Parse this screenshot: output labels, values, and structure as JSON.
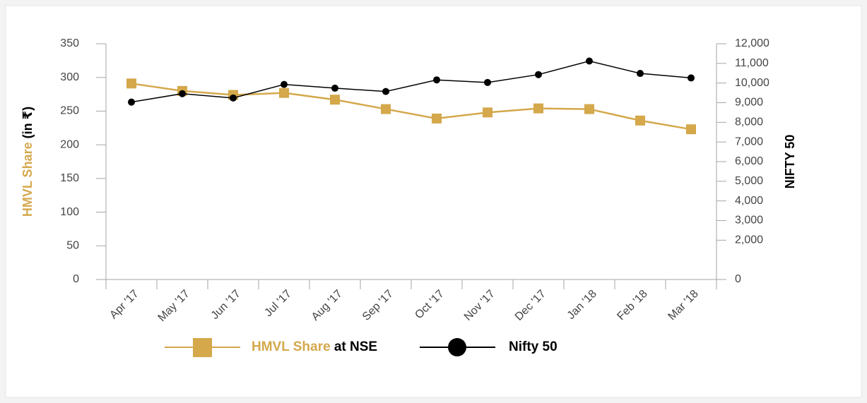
{
  "chart_data": {
    "type": "line",
    "categories": [
      "Apr '17",
      "May '17",
      "Jun '17",
      "Jul '17",
      "Aug '17",
      "Sep '17",
      "Oct '17",
      "Nov '17",
      "Dec '17",
      "Jan '18",
      "Feb '18",
      "Mar '18"
    ],
    "y_label": "HMVL Share (in ₹)",
    "y2_label": "NIFTY 50",
    "series": [
      {
        "name": "HMVL Share at NSE",
        "color": "#d4a84b",
        "marker": "square",
        "values": [
          291,
          280,
          274,
          277,
          267,
          253,
          239,
          248,
          254,
          253,
          236,
          223
        ]
      },
      {
        "name": "Nifty 50",
        "color": "#000000",
        "marker": "circle",
        "axis": "y2",
        "values": [
          9030,
          9460,
          9240,
          9930,
          9740,
          9570,
          10160,
          10030,
          10430,
          11120,
          10490,
          10260
        ]
      }
    ],
    "ylim": [
      0,
      350
    ],
    "yticks": [
      0,
      50,
      100,
      150,
      200,
      250,
      300,
      350
    ],
    "y2lim": [
      0,
      12000
    ],
    "y2ticks": [
      {
        "value": 0,
        "label": "0"
      },
      {
        "value": 2000,
        "label": "2,000"
      },
      {
        "value": 3000,
        "label": "3,000"
      },
      {
        "value": 4000,
        "label": "4,000"
      },
      {
        "value": 5000,
        "label": "5,000"
      },
      {
        "value": 6000,
        "label": "6,000"
      },
      {
        "value": 7000,
        "label": "7,000"
      },
      {
        "value": 8000,
        "label": "8,000"
      },
      {
        "value": 9000,
        "label": "9,000"
      },
      {
        "value": 10000,
        "label": "10,000"
      },
      {
        "value": 11000,
        "label": "11,000"
      },
      {
        "value": 12000,
        "label": "12,000"
      }
    ],
    "legend": "bottom-left"
  }
}
